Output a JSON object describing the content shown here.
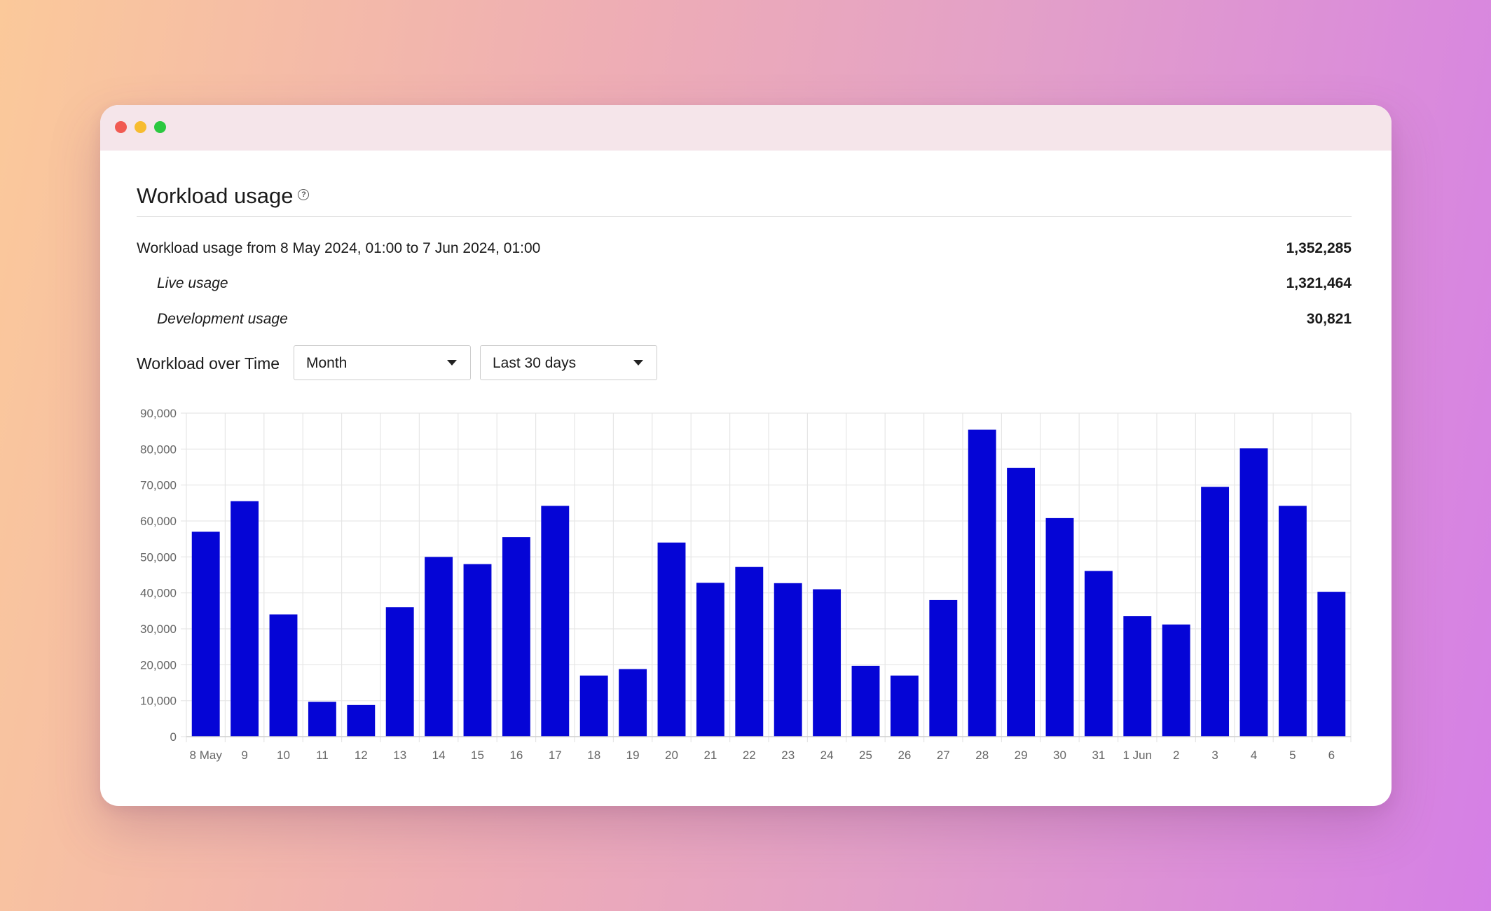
{
  "window": {
    "controls": [
      "close",
      "minimize",
      "maximize"
    ]
  },
  "header": {
    "title": "Workload usage",
    "help_icon": "question-circle-icon"
  },
  "summary": {
    "total_label": "Workload usage from 8 May 2024, 01:00 to 7 Jun 2024, 01:00",
    "total_value": "1,352,285",
    "live_label": "Live usage",
    "live_value": "1,321,464",
    "dev_label": "Development usage",
    "dev_value": "30,821"
  },
  "controls": {
    "label": "Workload over Time",
    "granularity": "Month",
    "range": "Last 30 days"
  },
  "colors": {
    "bar": "#0505d6",
    "grid": "#e6e6e6",
    "axis_text": "#666666"
  },
  "chart_data": {
    "type": "bar",
    "categories": [
      "8 May",
      "9",
      "10",
      "11",
      "12",
      "13",
      "14",
      "15",
      "16",
      "17",
      "18",
      "19",
      "20",
      "21",
      "22",
      "23",
      "24",
      "25",
      "26",
      "27",
      "28",
      "29",
      "30",
      "31",
      "1 Jun",
      "2",
      "3",
      "4",
      "5",
      "6"
    ],
    "values": [
      57000,
      65500,
      34000,
      9700,
      8800,
      36000,
      50000,
      48000,
      55500,
      64200,
      17000,
      18800,
      54000,
      42800,
      47200,
      42700,
      41000,
      19700,
      17000,
      38000,
      85400,
      74800,
      60800,
      46100,
      33500,
      31200,
      69500,
      80200,
      64200,
      40300
    ],
    "ylim": [
      0,
      90000
    ],
    "yticks": [
      "0",
      "10,000",
      "20,000",
      "30,000",
      "40,000",
      "50,000",
      "60,000",
      "70,000",
      "80,000",
      "90,000"
    ],
    "grid": true,
    "legend": "none"
  }
}
